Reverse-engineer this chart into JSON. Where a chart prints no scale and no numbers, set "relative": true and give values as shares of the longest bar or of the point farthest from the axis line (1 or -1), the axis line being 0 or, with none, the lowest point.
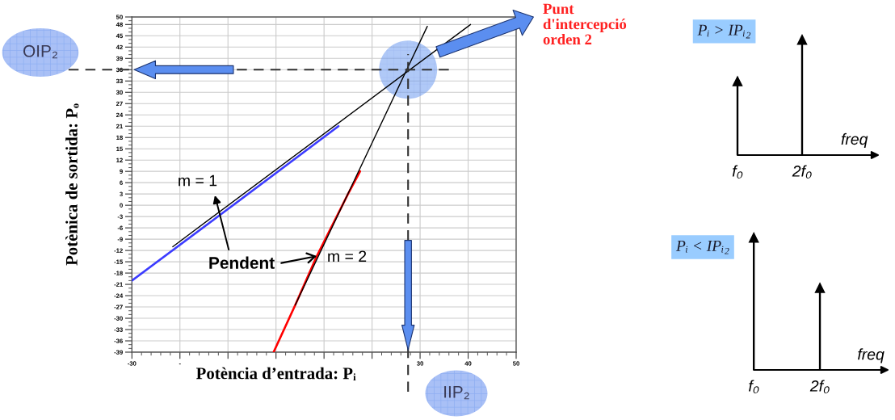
{
  "chart_data": [
    {
      "type": "line",
      "xlabel": "Potència d’entrada: Pᵢ",
      "ylabel": "Potènica de sortida: Pₒ",
      "series": [
        {
          "color": "#3c3cff",
          "x": [
            -30,
            -10,
            13
          ],
          "values": [
            -20,
            -1,
            21
          ]
        },
        {
          "color": "#ff0000",
          "x": [
            -0.5,
            4,
            8.5,
            15,
            17.5
          ],
          "values": [
            -39,
            -26.5,
            -13.5,
            3,
            9
          ]
        },
        {
          "color": "#000000",
          "x": [
            -21.5,
            40.5
          ],
          "values": [
            -11,
            48
          ]
        },
        {
          "color": "#000000",
          "x": [
            4,
            31.5
          ],
          "values": [
            -26.5,
            47.5
          ]
        }
      ],
      "xlim": [
        -30,
        50
      ],
      "ylim": [
        -39,
        50
      ],
      "xticks": [
        -30,
        {
          "value": -20,
          "label": "-"
        },
        {
          "value": -10,
          "label": null
        },
        {
          "value": 0,
          "label": null
        },
        {
          "value": 10,
          "label": null
        },
        {
          "value": 20,
          "label": null
        },
        30,
        40,
        50
      ],
      "yticks": [
        -39,
        -36,
        -33,
        -30,
        -27,
        -24,
        -21,
        -18,
        -15,
        -12,
        -9,
        -6,
        -3,
        0,
        3,
        6,
        9,
        12,
        15,
        18,
        21,
        24,
        27,
        30,
        33,
        36,
        39,
        42,
        45,
        48,
        50
      ],
      "grid": true,
      "line_style": "solid",
      "ref_lines": [
        {
          "axis": "y",
          "value": 36,
          "label": "OIP₂",
          "color": "#333333",
          "line_style": "dashed"
        },
        {
          "axis": "x",
          "value": 27.5,
          "label": "IIP₂",
          "color": "#333333",
          "line_style": "dashed"
        }
      ],
      "annotations": [
        "m = 1",
        "m = 2",
        {
          "text": "Pendent",
          "x": 8.5,
          "y": -13.5
        },
        "Punt\nd'intercepció\norden 2"
      ]
    },
    {
      "type": "lollipop",
      "title": "Pᵢ > IPᵢ₂",
      "xlabel": "freq",
      "categories": [
        "f₀",
        "2f₀"
      ],
      "series": [
        {
          "color": "#000000",
          "values": [
            0.64,
            1
          ]
        }
      ],
      "relative": true,
      "marker": "triangle"
    },
    {
      "type": "lollipop",
      "title": "Pᵢ < IPᵢ₂",
      "xlabel": "freq",
      "categories": [
        "f₀",
        "2f₀"
      ],
      "series": [
        {
          "color": "#000000",
          "values": [
            1,
            0.62
          ]
        }
      ],
      "relative": true,
      "marker": "triangle"
    }
  ]
}
